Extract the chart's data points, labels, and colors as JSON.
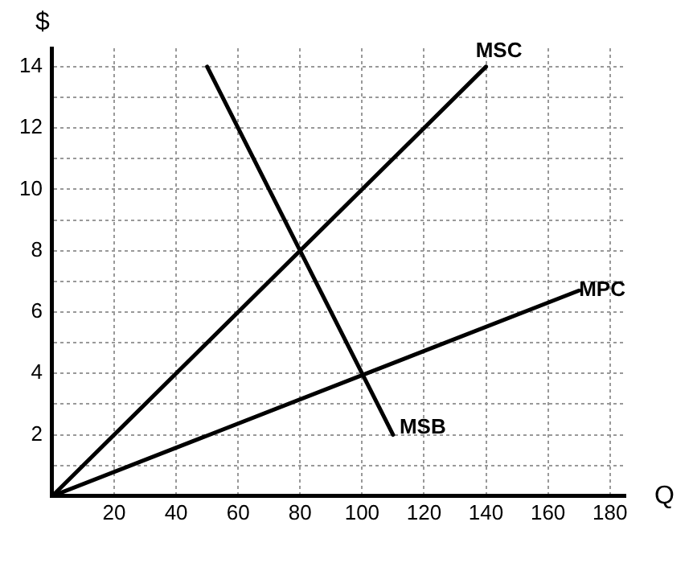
{
  "chart_data": {
    "type": "line",
    "xlabel": "Q",
    "ylabel": "$",
    "xlim": [
      0,
      185
    ],
    "ylim": [
      0,
      14.6
    ],
    "xticks": [
      20,
      40,
      60,
      80,
      100,
      120,
      140,
      160,
      180
    ],
    "yticks": [
      {
        "value": 1,
        "label": null
      },
      2,
      {
        "value": 3,
        "label": null
      },
      4,
      {
        "value": 5,
        "label": null
      },
      6,
      {
        "value": 7,
        "label": null
      },
      8,
      {
        "value": 9,
        "label": null
      },
      10,
      {
        "value": 11,
        "label": null
      },
      12,
      {
        "value": 13,
        "label": null
      },
      14
    ],
    "grid": true,
    "legend": false,
    "marker": "none",
    "line_style": "solid",
    "series": [
      {
        "name": "MSC",
        "color": "#000000",
        "x": [
          0,
          140
        ],
        "values": [
          0,
          14
        ]
      },
      {
        "name": "MPC",
        "color": "#000000",
        "x": [
          0,
          170
        ],
        "values": [
          0,
          6.7
        ]
      },
      {
        "name": "MSB",
        "color": "#000000",
        "x": [
          50,
          110
        ],
        "values": [
          14,
          2
        ]
      }
    ]
  }
}
